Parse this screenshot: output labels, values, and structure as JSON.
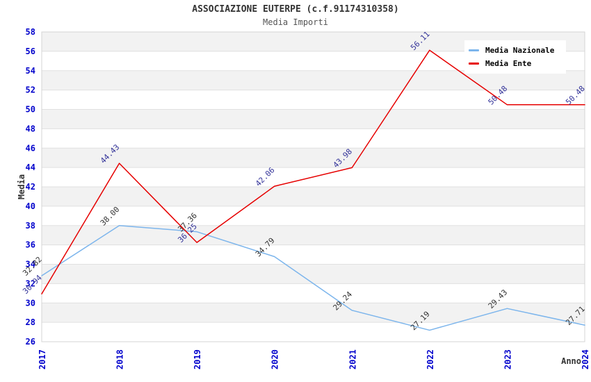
{
  "header": {
    "title": "ASSOCIAZIONE EUTERPE (c.f.91174310358)",
    "subtitle": "Media Importi"
  },
  "chart_data": {
    "type": "line",
    "x": [
      2017,
      2018,
      2019,
      2020,
      2021,
      2022,
      2023,
      2024
    ],
    "series": [
      {
        "name": "Media Nazionale",
        "color": "#7cb5ec",
        "label_color": "#333333",
        "values": [
          32.82,
          38.0,
          37.36,
          34.79,
          29.24,
          27.19,
          29.43,
          27.71
        ]
      },
      {
        "name": "Media Ente",
        "color": "#e60000",
        "label_color": "#333399",
        "values": [
          30.94,
          44.43,
          36.25,
          42.06,
          43.98,
          56.11,
          50.48,
          50.48
        ]
      }
    ],
    "xlabel": "Anno",
    "ylabel": "Media",
    "ylim": [
      26,
      58
    ],
    "ytick_step": 2,
    "legend_position": "top-right",
    "grid": "horizontal-bands",
    "style": {
      "band_fill": "#f2f2f2",
      "band_alt_fill": "#ffffff",
      "gridline_color": "#e0e0e0",
      "plot_border_color": "#d4d4d4",
      "tick_label_color": "#0000cc",
      "line_width": 1.5
    }
  }
}
